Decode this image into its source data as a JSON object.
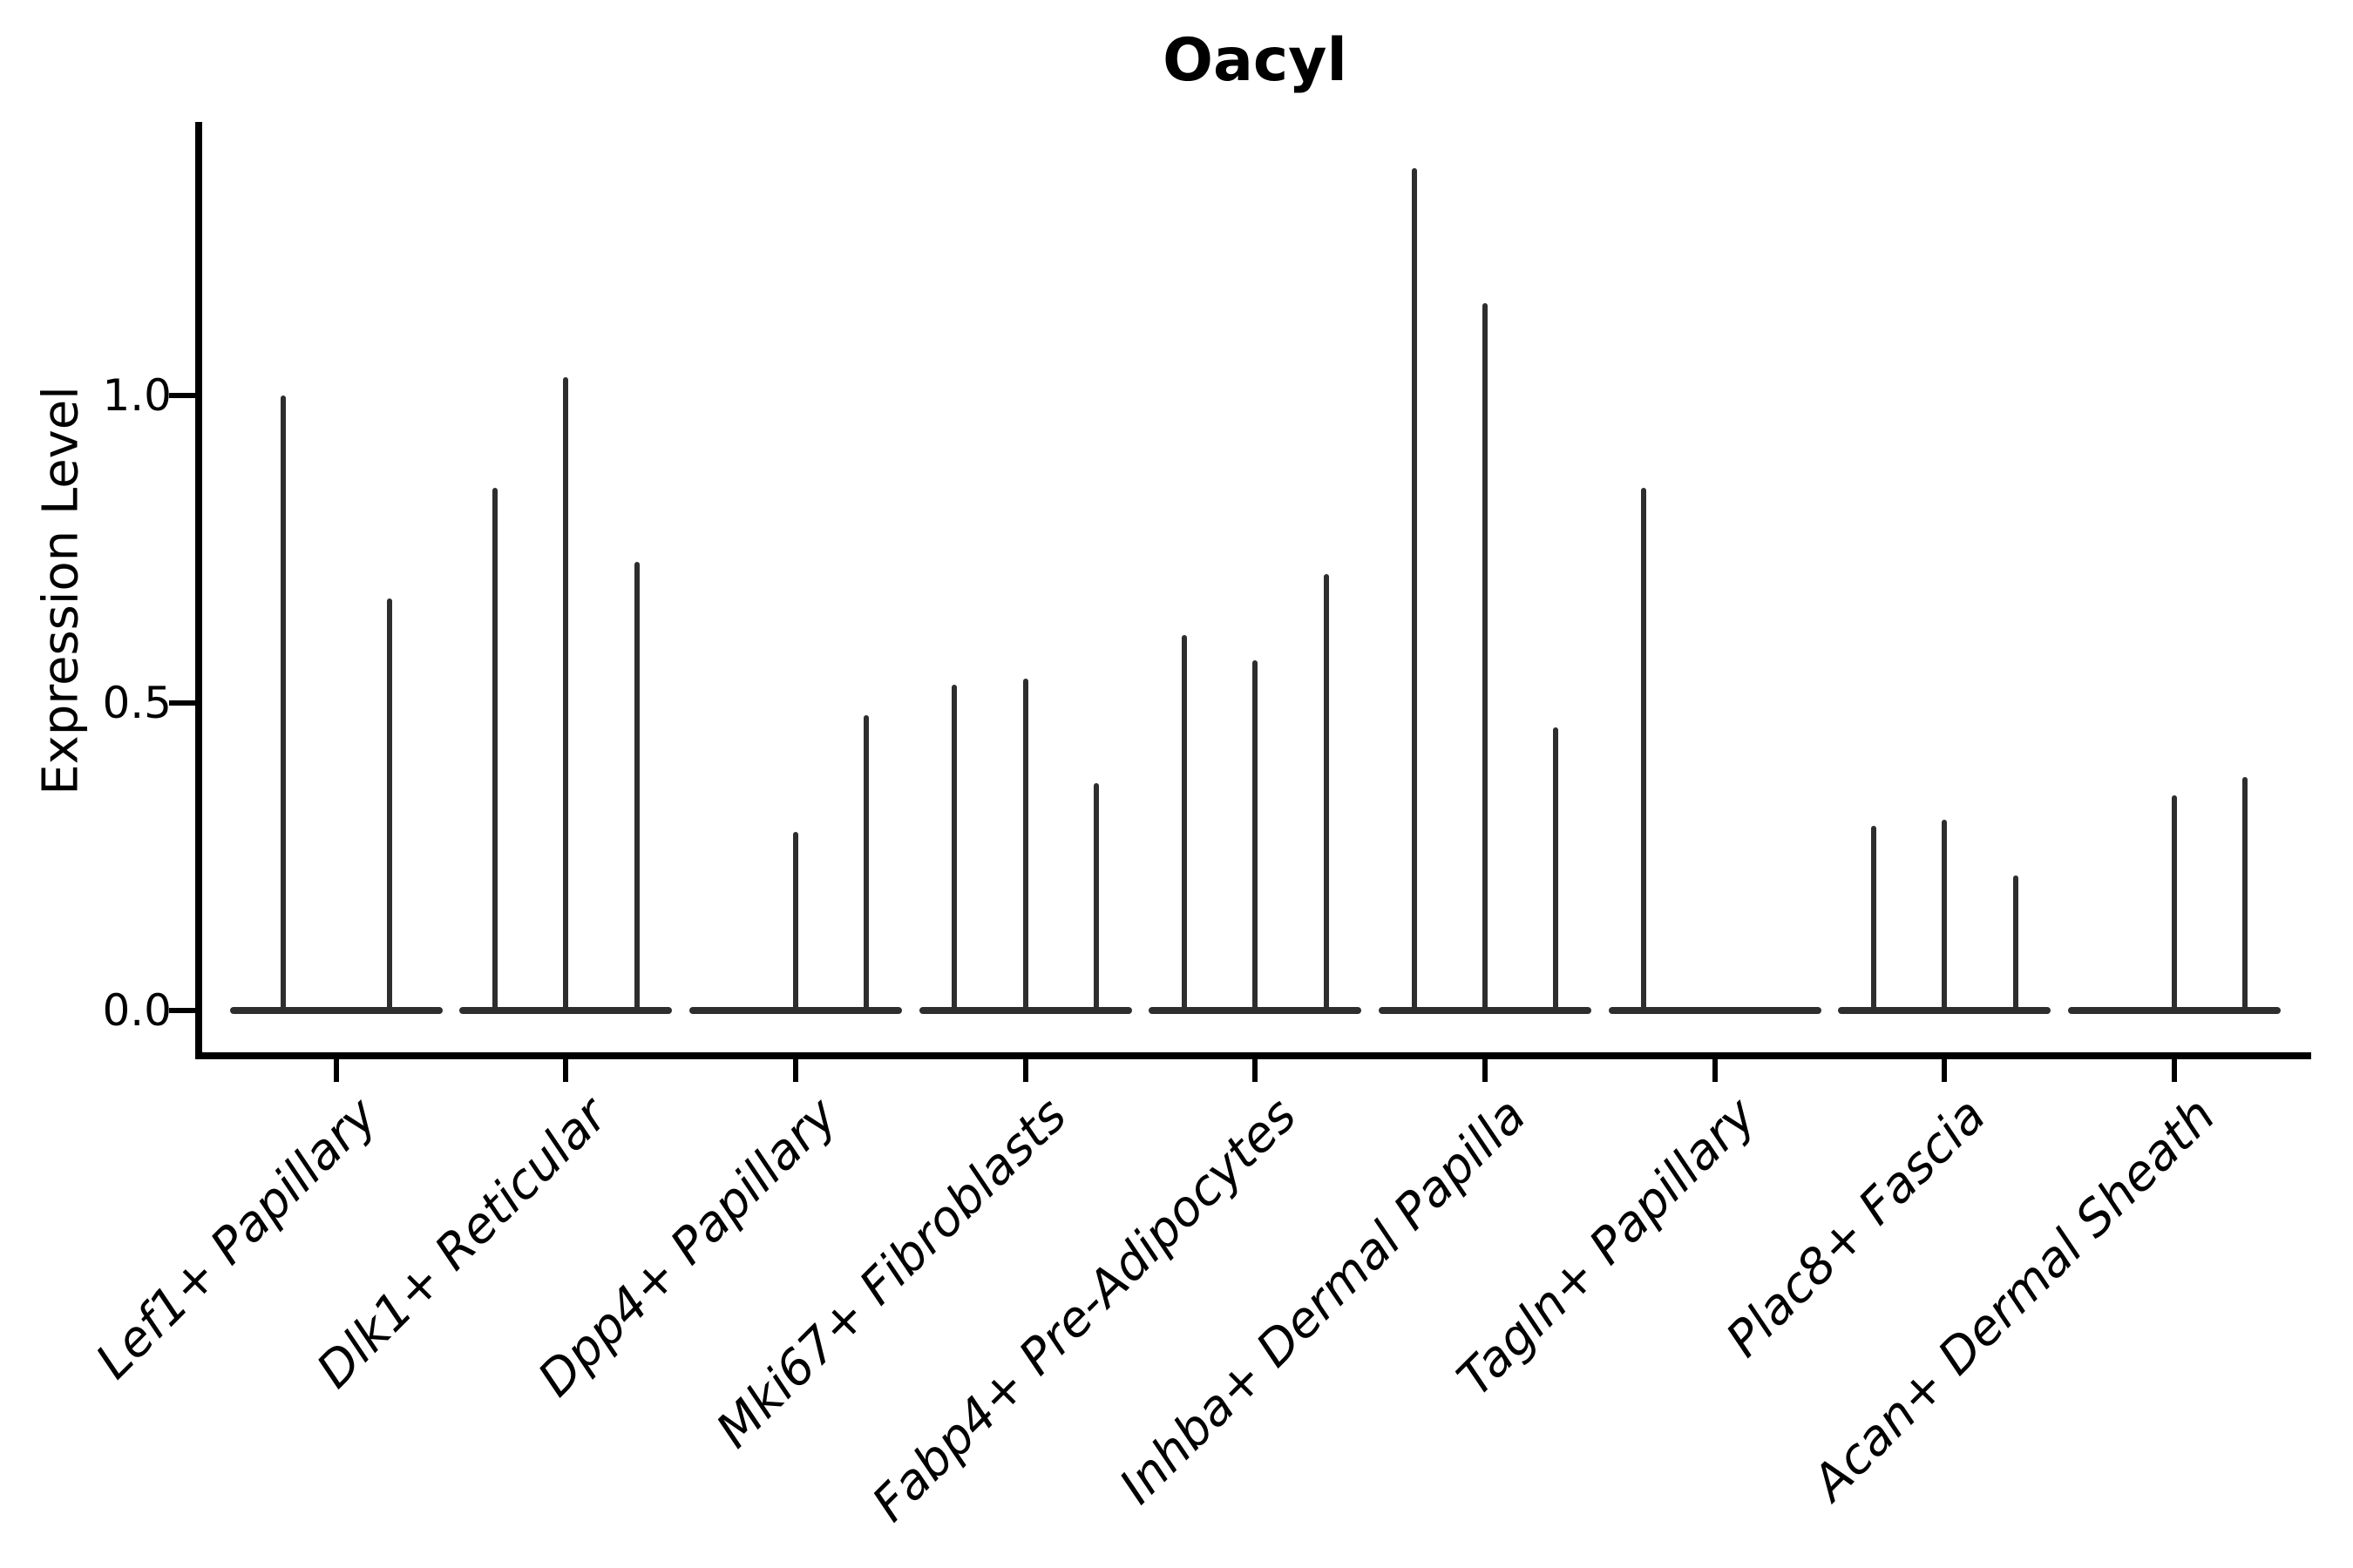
{
  "title": "Oacyl",
  "y_axis": {
    "label": "Expression Level",
    "ticks": [
      {
        "label": "0.0",
        "value": 0.0
      },
      {
        "label": "0.5",
        "value": 0.5
      },
      {
        "label": "1.0",
        "value": 1.0
      }
    ]
  },
  "chart_data": {
    "type": "violin",
    "title": "Oacyl",
    "xlabel": "",
    "ylabel": "Expression Level",
    "ylim": [
      -0.07,
      1.44
    ],
    "yticks": [
      0.0,
      0.5,
      1.0
    ],
    "grid": false,
    "legend": "none",
    "categories": [
      "Lef1+ Papillary",
      "Dlk1+ Reticular",
      "Dpp4+ Papillary",
      "Mki67+ Fibroblasts",
      "Fabp4+ Pre-Adipocytes",
      "Inhba+ Dermal Papilla",
      "Tagln+ Papillary",
      "Plac8+ Fascia",
      "Acan+ Dermal Sheath"
    ],
    "groups": [
      {
        "label": "Lef1+ Papillary",
        "violins": [
          1.0,
          0.67
        ]
      },
      {
        "label": "Dlk1+ Reticular",
        "violins": [
          0.85,
          1.03,
          0.73
        ]
      },
      {
        "label": "Dpp4+ Papillary",
        "violins": [
          null,
          0.29,
          0.48
        ]
      },
      {
        "label": "Mki67+ Fibroblasts",
        "violins": [
          0.53,
          0.54,
          0.37
        ]
      },
      {
        "label": "Fabp4+ Pre-Adipocytes",
        "violins": [
          0.61,
          0.57,
          0.71
        ]
      },
      {
        "label": "Inhba+ Dermal Papilla",
        "violins": [
          1.37,
          1.15,
          0.46
        ]
      },
      {
        "label": "Tagln+ Papillary",
        "violins": [
          0.85,
          null,
          null
        ]
      },
      {
        "label": "Plac8+ Fascia",
        "violins": [
          0.3,
          0.31,
          0.22
        ]
      },
      {
        "label": "Acan+ Dermal Sheath",
        "violins": [
          null,
          0.35,
          0.38
        ]
      }
    ]
  },
  "style": {
    "violin_color": "#2e2e2e",
    "axis_color": "#000000",
    "text_color": "#000000",
    "background": "#ffffff"
  }
}
